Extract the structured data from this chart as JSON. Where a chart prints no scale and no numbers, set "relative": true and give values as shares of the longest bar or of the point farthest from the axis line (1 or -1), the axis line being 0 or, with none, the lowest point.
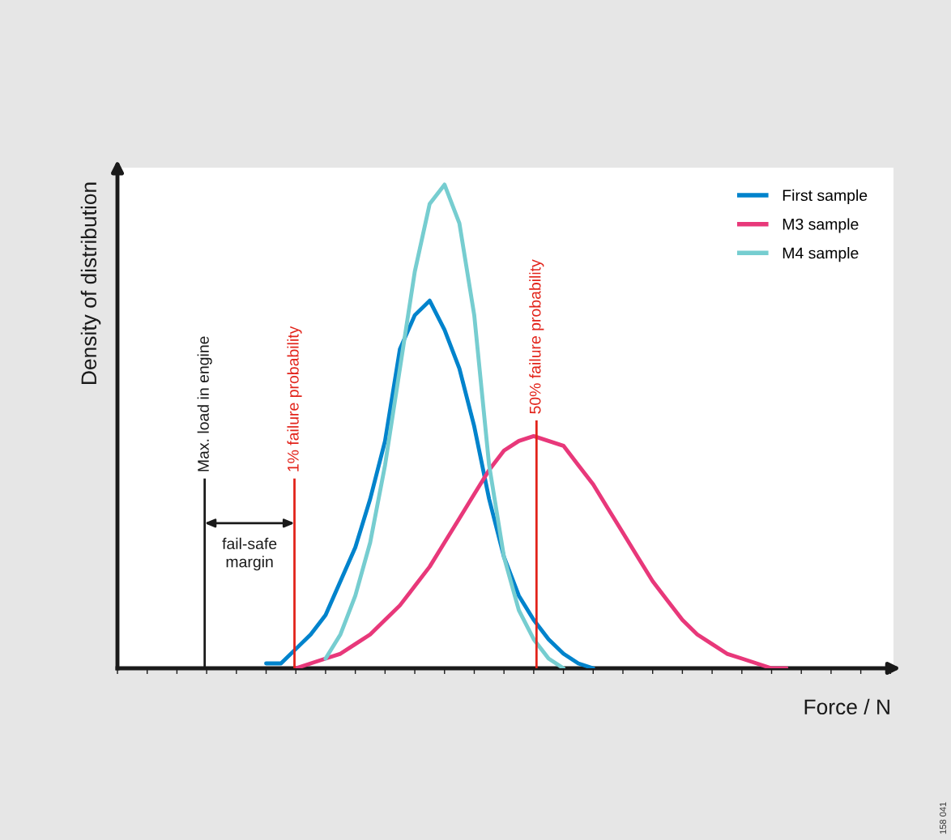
{
  "chart_data": {
    "type": "line",
    "relative": true,
    "xlabel": "Force / N",
    "ylabel": "Density of distribution",
    "categories": [
      null,
      null,
      null,
      null,
      null,
      null,
      null,
      null,
      null,
      null,
      null,
      null,
      null,
      null,
      null,
      null,
      null,
      null,
      null,
      null,
      null,
      null,
      null,
      null,
      null,
      null,
      null,
      null,
      null,
      null,
      null,
      null,
      null,
      null,
      null,
      null,
      null,
      null,
      null,
      null,
      null,
      null,
      null,
      null,
      null,
      null,
      null,
      null,
      null,
      null,
      null,
      null,
      null
    ],
    "series": [
      {
        "name": "First sample",
        "color": "#0083cc",
        "values": [
          null,
          null,
          null,
          null,
          null,
          null,
          null,
          null,
          null,
          null,
          0.01,
          0.01,
          0.04,
          0.07,
          0.11,
          0.18,
          0.25,
          0.35,
          0.47,
          0.66,
          0.73,
          0.76,
          0.7,
          0.62,
          0.5,
          0.35,
          0.23,
          0.15,
          0.1,
          0.06,
          0.03,
          0.01,
          0,
          null,
          null,
          null,
          null,
          null,
          null,
          null,
          null,
          null,
          null,
          null,
          null,
          null,
          null,
          null,
          null,
          null,
          null,
          null,
          null
        ]
      },
      {
        "name": "M3 sample",
        "color": "#e8387a",
        "values": [
          null,
          null,
          null,
          null,
          null,
          null,
          null,
          null,
          null,
          null,
          null,
          null,
          0,
          0.01,
          0.02,
          0.03,
          0.05,
          0.07,
          0.1,
          0.13,
          0.17,
          0.21,
          0.26,
          0.31,
          0.36,
          0.41,
          0.45,
          0.47,
          0.48,
          0.47,
          0.46,
          0.42,
          0.38,
          0.33,
          0.28,
          0.23,
          0.18,
          0.14,
          0.1,
          0.07,
          0.05,
          0.03,
          0.02,
          0.01,
          0,
          0,
          null,
          null,
          null,
          null,
          null,
          null,
          null
        ]
      },
      {
        "name": "M4 sample",
        "color": "#76cdd0",
        "values": [
          null,
          null,
          null,
          null,
          null,
          null,
          null,
          null,
          null,
          null,
          null,
          null,
          null,
          null,
          0.02,
          0.07,
          0.15,
          0.26,
          0.42,
          0.62,
          0.82,
          0.96,
          1.0,
          0.92,
          0.73,
          0.42,
          0.23,
          0.12,
          0.06,
          0.02,
          0,
          null,
          null,
          null,
          null,
          null,
          null,
          null,
          null,
          null,
          null,
          null,
          null,
          null,
          null,
          null,
          null,
          null,
          null,
          null,
          null,
          null,
          null
        ]
      }
    ],
    "annotations": [
      "Max. load in engine",
      "1% failure probability",
      "50% failure probability",
      "fail-safe\nmargin",
      "158 041"
    ],
    "legend": "top right",
    "marker": "none",
    "line_style": "solid"
  }
}
